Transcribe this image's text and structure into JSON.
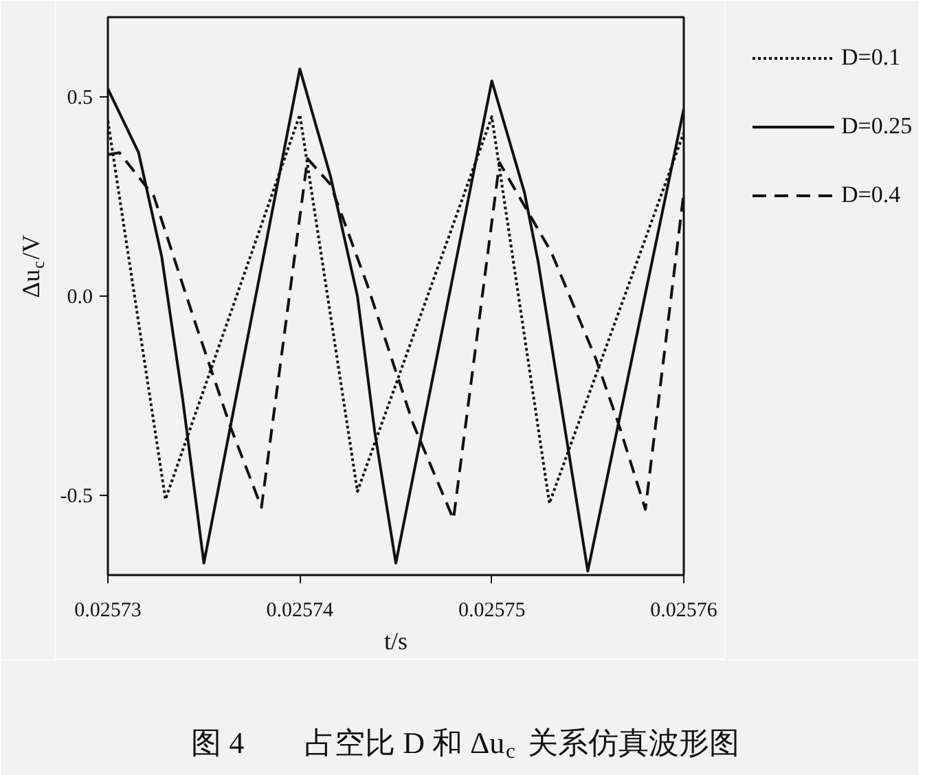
{
  "chart_data": {
    "type": "line",
    "title": "图 4　　占空比 D 和 Δu$_{c}$ 关系仿真波形图",
    "xlabel": "t/s",
    "ylabel": "Δu$_{c}$/V",
    "xlim": [
      0.02573,
      0.02576
    ],
    "ylim": [
      -0.7,
      0.7
    ],
    "xticks": [
      0.02573,
      0.02574,
      0.02575,
      0.02576
    ],
    "yticks": [
      -0.5,
      {
        "value": 0,
        "label": "0.0"
      },
      0.5
    ],
    "grid": false,
    "legend": "top right",
    "marker": "none",
    "series": [
      {
        "name": "D=0.1",
        "color": "#111111",
        "line_style": "dotted",
        "x": [
          0.02573,
          0.025733,
          0.02574,
          0.025743,
          0.02575,
          0.025753,
          0.02576
        ],
        "values": [
          0.44,
          -0.51,
          0.455,
          -0.49,
          0.45,
          -0.52,
          0.41
        ]
      },
      {
        "name": "D=0.25",
        "color": "#111111",
        "line_style": "solid",
        "x": [
          0.02573,
          0.0257316,
          0.0257328,
          0.0257339,
          0.025735,
          0.02574,
          0.0257416,
          0.025743,
          0.0257439,
          0.025745,
          0.02575,
          0.0257517,
          0.0257524,
          0.025754,
          0.025755,
          0.02576
        ],
        "values": [
          0.52,
          0.36,
          0.1,
          -0.26,
          -0.67,
          0.57,
          0.3,
          0.0,
          -0.34,
          -0.67,
          0.54,
          0.26,
          0.09,
          -0.39,
          -0.69,
          0.47
        ]
      },
      {
        "name": "D=0.4",
        "color": "#111111",
        "line_style": "dashed",
        "x": [
          0.02573,
          0.0257306,
          0.0257324,
          0.0257345,
          0.0257364,
          0.025738,
          0.0257404,
          0.0257416,
          0.0257435,
          0.0257459,
          0.025748,
          0.0257504,
          0.0257531,
          0.0257554,
          0.0257566,
          0.025758,
          0.02576
        ],
        "values": [
          0.355,
          0.36,
          0.25,
          -0.06,
          -0.33,
          -0.53,
          0.345,
          0.28,
          0.03,
          -0.32,
          -0.56,
          0.335,
          0.11,
          -0.155,
          -0.32,
          -0.535,
          0.26
        ]
      }
    ]
  }
}
